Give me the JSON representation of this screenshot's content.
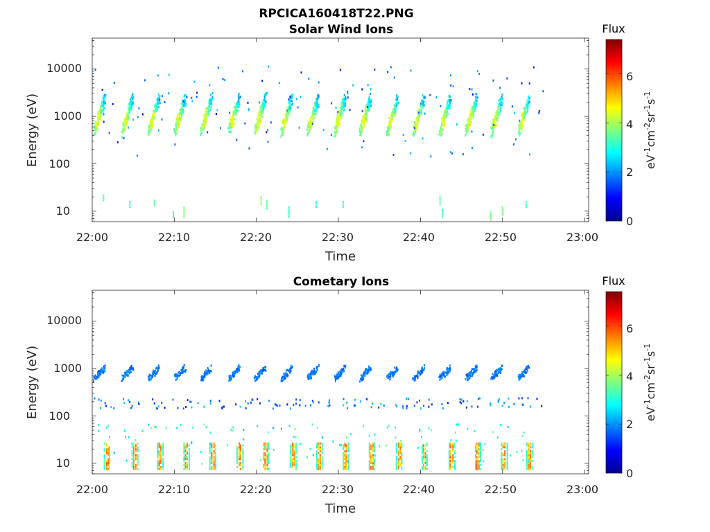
{
  "figure": {
    "file_title": "RPCICA160418T22.PNG"
  },
  "chart_data": [
    {
      "type": "heatmap",
      "title": "Solar Wind Ions",
      "xlabel": "Time",
      "ylabel": "Energy (eV)",
      "x_tick_labels": [
        "22:00",
        "22:10",
        "22:20",
        "22:30",
        "22:40",
        "22:50",
        "23:00"
      ],
      "x_tick_minutes": [
        0,
        10,
        20,
        30,
        40,
        50,
        60
      ],
      "xlim_minutes": [
        0,
        60.5
      ],
      "y_scale": "log",
      "ylim": [
        6,
        45000
      ],
      "y_tick_labels": [
        "10",
        "100",
        "1000",
        "10000"
      ],
      "y_tick_values": [
        10,
        100,
        1000,
        10000
      ],
      "colorbar": {
        "label": "Flux",
        "units": "eV-1cm-2sr-1s-1",
        "range": [
          0,
          7.4
        ],
        "tick_labels": [
          "0",
          "2",
          "4",
          "6"
        ],
        "tick_values": [
          0,
          2,
          4,
          6
        ],
        "colormap": "jet"
      },
      "sweep_start_minutes": [
        0.2,
        3.6,
        6.8,
        10.0,
        13.2,
        16.6,
        19.8,
        23.0,
        26.2,
        29.5,
        32.6,
        35.9,
        39.1,
        42.3,
        45.5,
        48.6,
        51.9
      ],
      "main_band": {
        "low_eV": 500,
        "high_eV": 2600,
        "peak_flux": 4.6
      },
      "low_energy_streaks": [
        {
          "t": 1.3,
          "e": [
            18,
            24
          ],
          "flux": 3.2
        },
        {
          "t": 4.5,
          "e": [
            13,
            17
          ],
          "flux": 3.0
        },
        {
          "t": 7.5,
          "e": [
            14,
            18
          ],
          "flux": 3.5
        },
        {
          "t": 9.8,
          "e": [
            8,
            11
          ],
          "flux": 3.3
        },
        {
          "t": 11.1,
          "e": [
            8,
            14
          ],
          "flux": 3.8
        },
        {
          "t": 20.5,
          "e": [
            15,
            22
          ],
          "flux": 3.9
        },
        {
          "t": 21.2,
          "e": [
            12,
            17
          ],
          "flux": 3.5
        },
        {
          "t": 23.9,
          "e": [
            8,
            14
          ],
          "flux": 3.2
        },
        {
          "t": 27.2,
          "e": [
            13,
            17
          ],
          "flux": 3.0
        },
        {
          "t": 30.5,
          "e": [
            13,
            17
          ],
          "flux": 3.3
        },
        {
          "t": 42.3,
          "e": [
            15,
            22
          ],
          "flux": 3.4
        },
        {
          "t": 42.6,
          "e": [
            8,
            12
          ],
          "flux": 3.2
        },
        {
          "t": 48.5,
          "e": [
            7,
            10
          ],
          "flux": 3.6
        },
        {
          "t": 49.9,
          "e": [
            9,
            14
          ],
          "flux": 3.7
        },
        {
          "t": 52.8,
          "e": [
            13,
            17
          ],
          "flux": 3.2
        }
      ]
    },
    {
      "type": "heatmap",
      "title": "Cometary Ions",
      "xlabel": "Time",
      "ylabel": "Energy (eV)",
      "x_tick_labels": [
        "22:00",
        "22:10",
        "22:20",
        "22:30",
        "22:40",
        "22:50",
        "23:00"
      ],
      "x_tick_minutes": [
        0,
        10,
        20,
        30,
        40,
        50,
        60
      ],
      "xlim_minutes": [
        0,
        60.5
      ],
      "y_scale": "log",
      "ylim": [
        6,
        45000
      ],
      "y_tick_labels": [
        "10",
        "100",
        "1000",
        "10000"
      ],
      "y_tick_values": [
        10,
        100,
        1000,
        10000
      ],
      "colorbar": {
        "label": "Flux",
        "units": "eV-1cm-2sr-1s-1",
        "range": [
          0,
          7.4
        ],
        "tick_labels": [
          "0",
          "2",
          "4",
          "6"
        ],
        "tick_values": [
          0,
          2,
          4,
          6
        ],
        "colormap": "jet"
      },
      "sweep_start_minutes": [
        0.2,
        3.6,
        6.8,
        10.0,
        13.2,
        16.6,
        19.8,
        23.0,
        26.2,
        29.5,
        32.6,
        35.9,
        39.1,
        42.3,
        45.5,
        48.6,
        51.9
      ],
      "main_band": {
        "low_eV": 650,
        "high_eV": 1100,
        "peak_flux": 1.8
      },
      "low_energy_band": {
        "low_eV": 8,
        "high_eV": 30,
        "peak_flux": 5.3
      },
      "low_energy_columns_minutes": [
        1.4,
        4.8,
        7.9,
        11.1,
        14.3,
        17.6,
        20.8,
        24.1,
        27.3,
        30.5,
        33.7,
        37.0,
        40.1,
        43.4,
        46.6,
        49.8,
        52.9
      ]
    }
  ]
}
